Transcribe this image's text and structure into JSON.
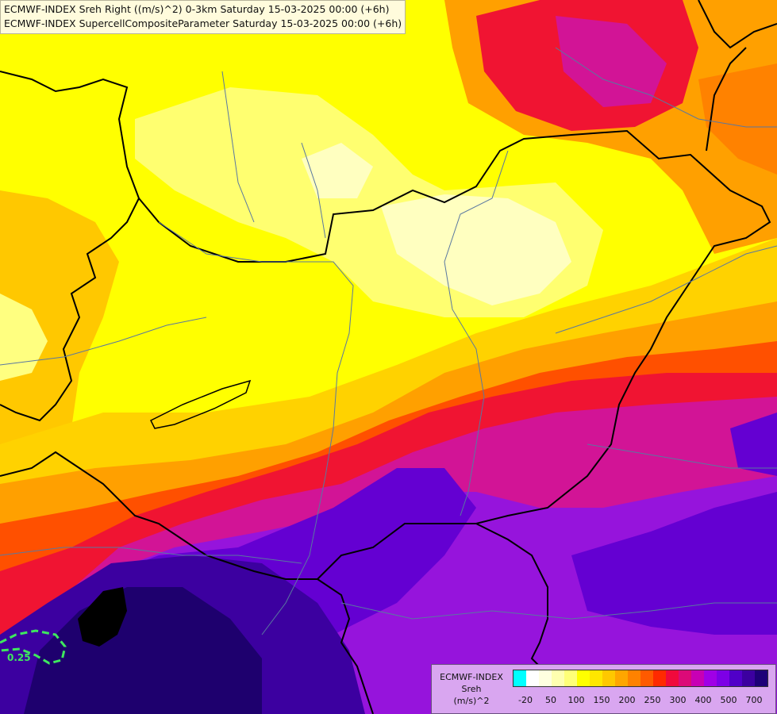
{
  "titles": {
    "line1": "ECMWF-INDEX Sreh Right ((m/s)^2) 0-3km Saturday 15-03-2025 00:00 (+6h)",
    "line2": "ECMWF-INDEX SupercellCompositeParameter Saturday 15-03-2025 00:00 (+6h)"
  },
  "contour_label": "0.25",
  "legend": {
    "line1": "ECMWF-INDEX",
    "line2": "Sreh",
    "line3": "(m/s)^2",
    "colors": [
      "#00ffff",
      "#ffffff",
      "#ffffe0",
      "#ffffb0",
      "#ffff78",
      "#ffff00",
      "#ffe600",
      "#ffc800",
      "#ffa600",
      "#ff8200",
      "#ff5a00",
      "#ff2a00",
      "#f00a3c",
      "#dc0a78",
      "#c800b4",
      "#a000e6",
      "#7d00e6",
      "#5000c8",
      "#3c00a0",
      "#1e0078"
    ],
    "ticks": [
      "-20",
      "50",
      "100",
      "150",
      "200",
      "250",
      "300",
      "400",
      "500",
      "700"
    ]
  },
  "map_palette": {
    "pale_yellow": "#ffffc0",
    "light_yellow": "#ffff70",
    "yellow": "#ffff00",
    "gold": "#ffd200",
    "orange": "#ffa000",
    "red_orange": "#ff5000",
    "red": "#f01432",
    "magenta": "#d21496",
    "purple": "#9614dc",
    "violet": "#6400d2",
    "indigo": "#3c00a0",
    "navy": "#1e006e",
    "black": "#000000",
    "border_color": "#000000",
    "river_color": "#5a78a0",
    "contour_color": "#3ee85e"
  }
}
